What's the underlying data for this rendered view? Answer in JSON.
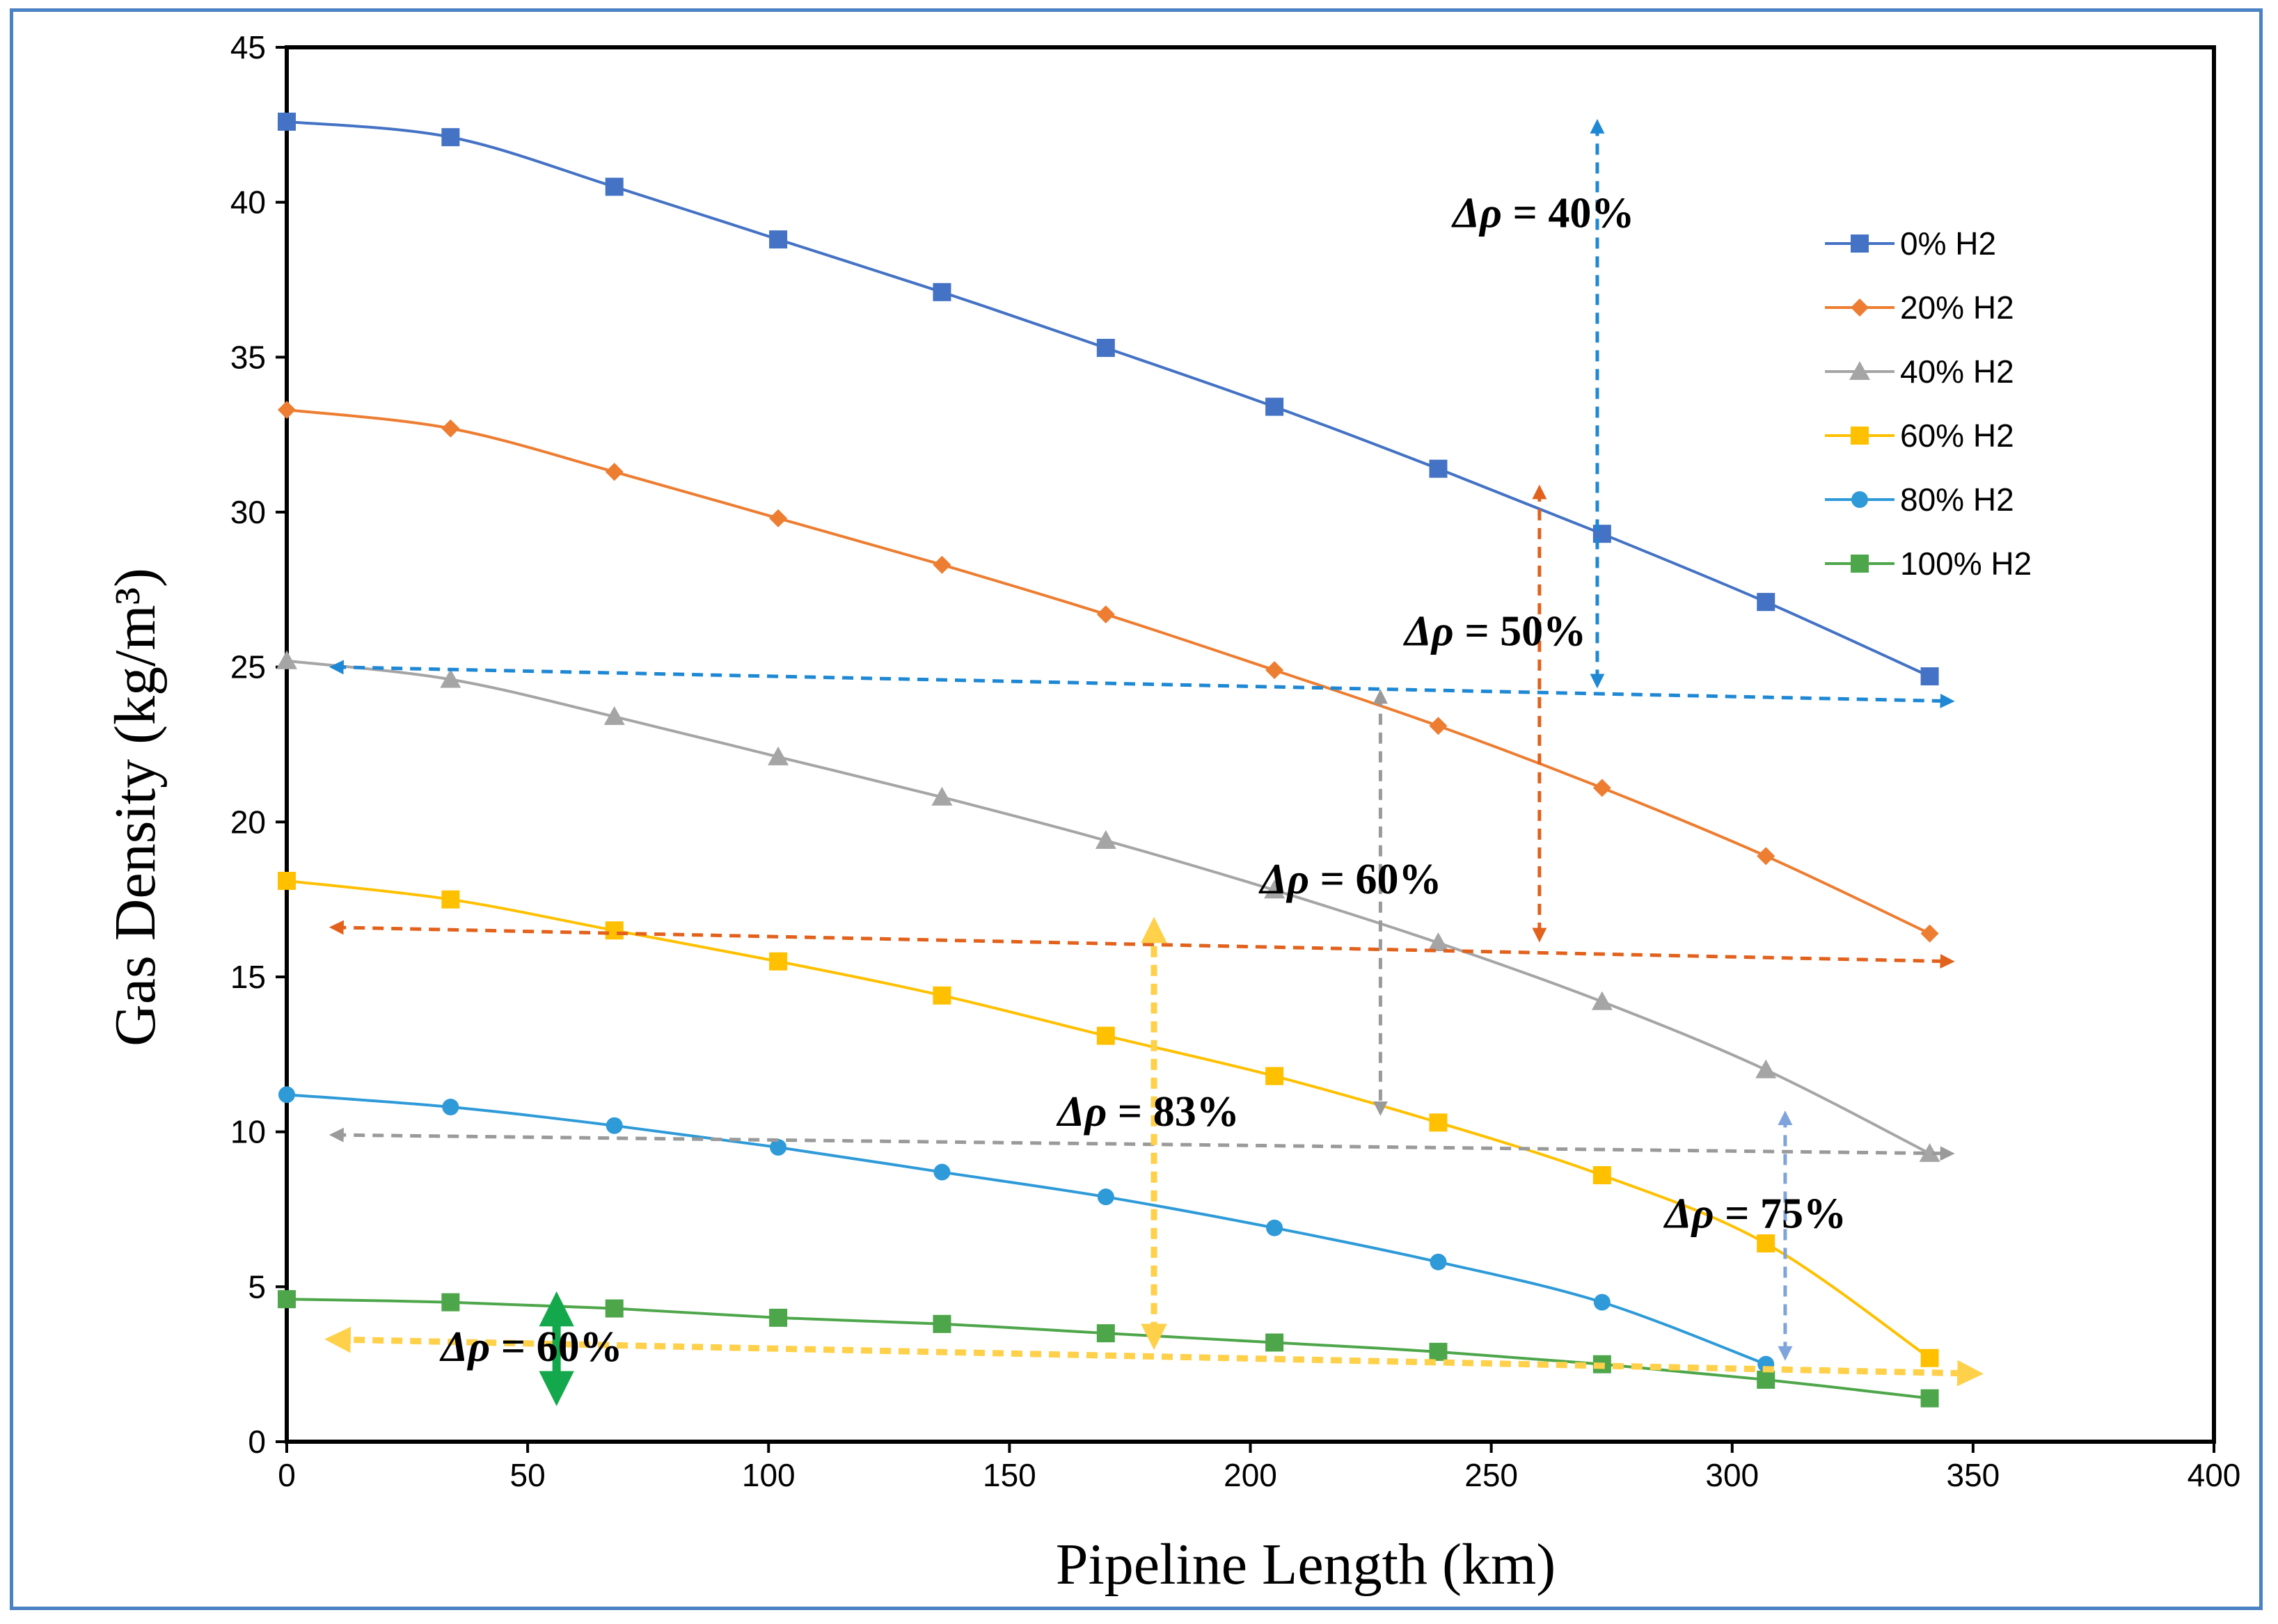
{
  "chart_data": {
    "type": "line",
    "title": "",
    "xlabel": "Pipeline Length (km)",
    "ylabel": "Gas Density (kg/m³)",
    "xlim": [
      0,
      400
    ],
    "ylim": [
      0,
      45
    ],
    "x_ticks": [
      0,
      50,
      100,
      150,
      200,
      250,
      300,
      350,
      400
    ],
    "y_ticks": [
      0,
      5,
      10,
      15,
      20,
      25,
      30,
      35,
      40,
      45
    ],
    "grid": false,
    "legend_position": "right",
    "x": [
      0,
      34,
      68,
      102,
      136,
      170,
      205,
      239,
      273,
      307,
      341
    ],
    "series": [
      {
        "name": "0% H2",
        "color": "#4472c4",
        "marker": "square",
        "values": [
          42.6,
          42.1,
          40.5,
          38.8,
          37.1,
          35.3,
          33.4,
          31.4,
          29.3,
          27.1,
          24.7
        ]
      },
      {
        "name": "20% H2",
        "color": "#ed7d31",
        "marker": "diamond",
        "values": [
          33.3,
          32.7,
          31.3,
          29.8,
          28.3,
          26.7,
          24.9,
          23.1,
          21.1,
          18.9,
          16.4
        ]
      },
      {
        "name": "40% H2",
        "color": "#a5a5a5",
        "marker": "triangle",
        "values": [
          25.2,
          24.6,
          23.4,
          22.1,
          20.8,
          19.4,
          17.8,
          16.1,
          14.2,
          12.0,
          9.3
        ]
      },
      {
        "name": "60% H2",
        "color": "#ffc000",
        "marker": "square",
        "values": [
          18.1,
          17.5,
          16.5,
          15.5,
          14.4,
          13.1,
          11.8,
          10.3,
          8.6,
          6.4,
          2.7
        ]
      },
      {
        "name": "80% H2",
        "color": "#2e9ad8",
        "marker": "circle",
        "values": [
          11.2,
          10.8,
          10.2,
          9.5,
          8.7,
          7.9,
          6.9,
          5.8,
          4.5,
          2.5,
          null
        ]
      },
      {
        "name": "100% H2",
        "color": "#4ea64a",
        "marker": "square",
        "values": [
          4.6,
          4.5,
          4.3,
          4.0,
          3.8,
          3.5,
          3.2,
          2.9,
          2.5,
          2.0,
          1.4
        ]
      }
    ],
    "annotations": [
      {
        "label": "Δρ = 40%",
        "symbol": "Δρ",
        "rest": " = 40%",
        "color": "#1e88d4",
        "text_at": [
          242,
          39.2
        ],
        "dashed": true,
        "horizontal": {
          "from": [
            10,
            25.0
          ],
          "to": [
            345,
            23.9
          ]
        },
        "vertical": {
          "x": 272,
          "from": 42.5,
          "to": 24.5
        }
      },
      {
        "label": "Δρ = 50%",
        "symbol": "Δρ",
        "rest": " = 50%",
        "color": "#e2611c",
        "text_at": [
          232,
          25.7
        ],
        "dashed": true,
        "horizontal": {
          "from": [
            10,
            16.6
          ],
          "to": [
            345,
            15.5
          ]
        },
        "vertical": {
          "x": 260,
          "from": 30.7,
          "to": 16.3
        }
      },
      {
        "label": "Δρ = 60%",
        "symbol": "Δρ",
        "rest": " = 60%",
        "color": "#9a9a9a",
        "text_at": [
          202,
          17.7
        ],
        "dashed": true,
        "horizontal": {
          "from": [
            10,
            9.9
          ],
          "to": [
            345,
            9.3
          ]
        },
        "vertical": {
          "x": 227,
          "from": 24.1,
          "to": 10.7
        }
      },
      {
        "label": "Δρ = 83%",
        "symbol": "Δρ",
        "rest": " = 83%",
        "color": "#ffd04a",
        "text_at": [
          160,
          10.2
        ],
        "dashed": true,
        "horizontal": {
          "from": [
            10,
            3.3
          ],
          "to": [
            350,
            2.2
          ]
        },
        "vertical": {
          "x": 180,
          "from": 16.6,
          "to": 3.3
        }
      },
      {
        "label": "Δρ = 75%",
        "symbol": "Δρ",
        "rest": " = 75%",
        "color": "#7fa4dc",
        "text_at": [
          286,
          6.9
        ],
        "dashed": true,
        "horizontal": null,
        "vertical": {
          "x": 311,
          "from": 10.5,
          "to": 2.8
        }
      },
      {
        "label": "Δρ = 60%",
        "symbol": "Δρ",
        "rest": " = 60%",
        "color": "#13a84b",
        "text_at": [
          32,
          2.6
        ],
        "dashed": false,
        "horizontal": null,
        "vertical": {
          "x": 56,
          "from": 4.4,
          "to": 1.6
        }
      }
    ]
  }
}
